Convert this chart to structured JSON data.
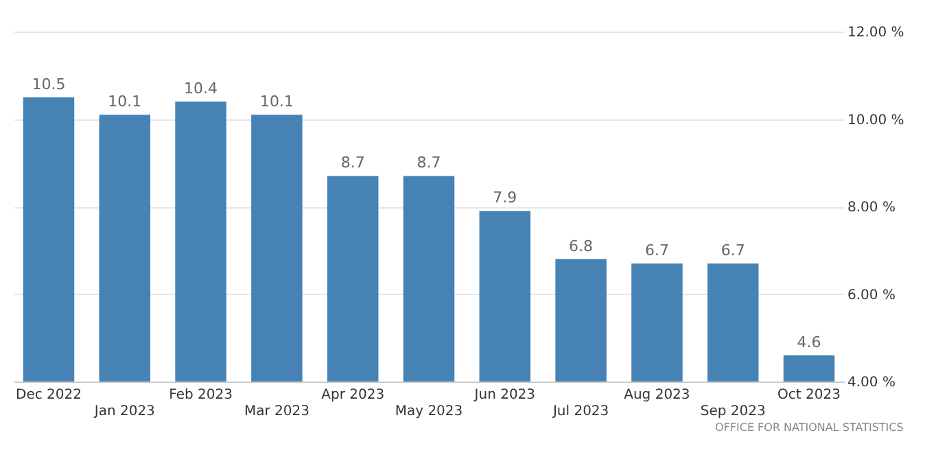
{
  "chart_data": {
    "type": "bar",
    "categories": [
      "Dec 2022",
      "Jan 2023",
      "Feb 2023",
      "Mar 2023",
      "Apr 2023",
      "May 2023",
      "Jun 2023",
      "Jul 2023",
      "Aug 2023",
      "Sep 2023",
      "Oct 2023"
    ],
    "values": [
      10.5,
      10.1,
      10.4,
      10.1,
      8.7,
      8.7,
      7.9,
      6.8,
      6.7,
      6.7,
      4.6
    ],
    "color": "#4682b4",
    "ylim": [
      4,
      12
    ],
    "yticks": [
      {
        "value": 4,
        "label": "4.00 %"
      },
      {
        "value": 6,
        "label": "6.00 %"
      },
      {
        "value": 8,
        "label": "8.00 %"
      },
      {
        "value": 10,
        "label": "10.00 %"
      },
      {
        "value": 12,
        "label": "12.00 %"
      }
    ],
    "grid": "y",
    "data_labels": true,
    "annotations": [
      "OFFICE FOR NATIONAL STATISTICS"
    ]
  }
}
